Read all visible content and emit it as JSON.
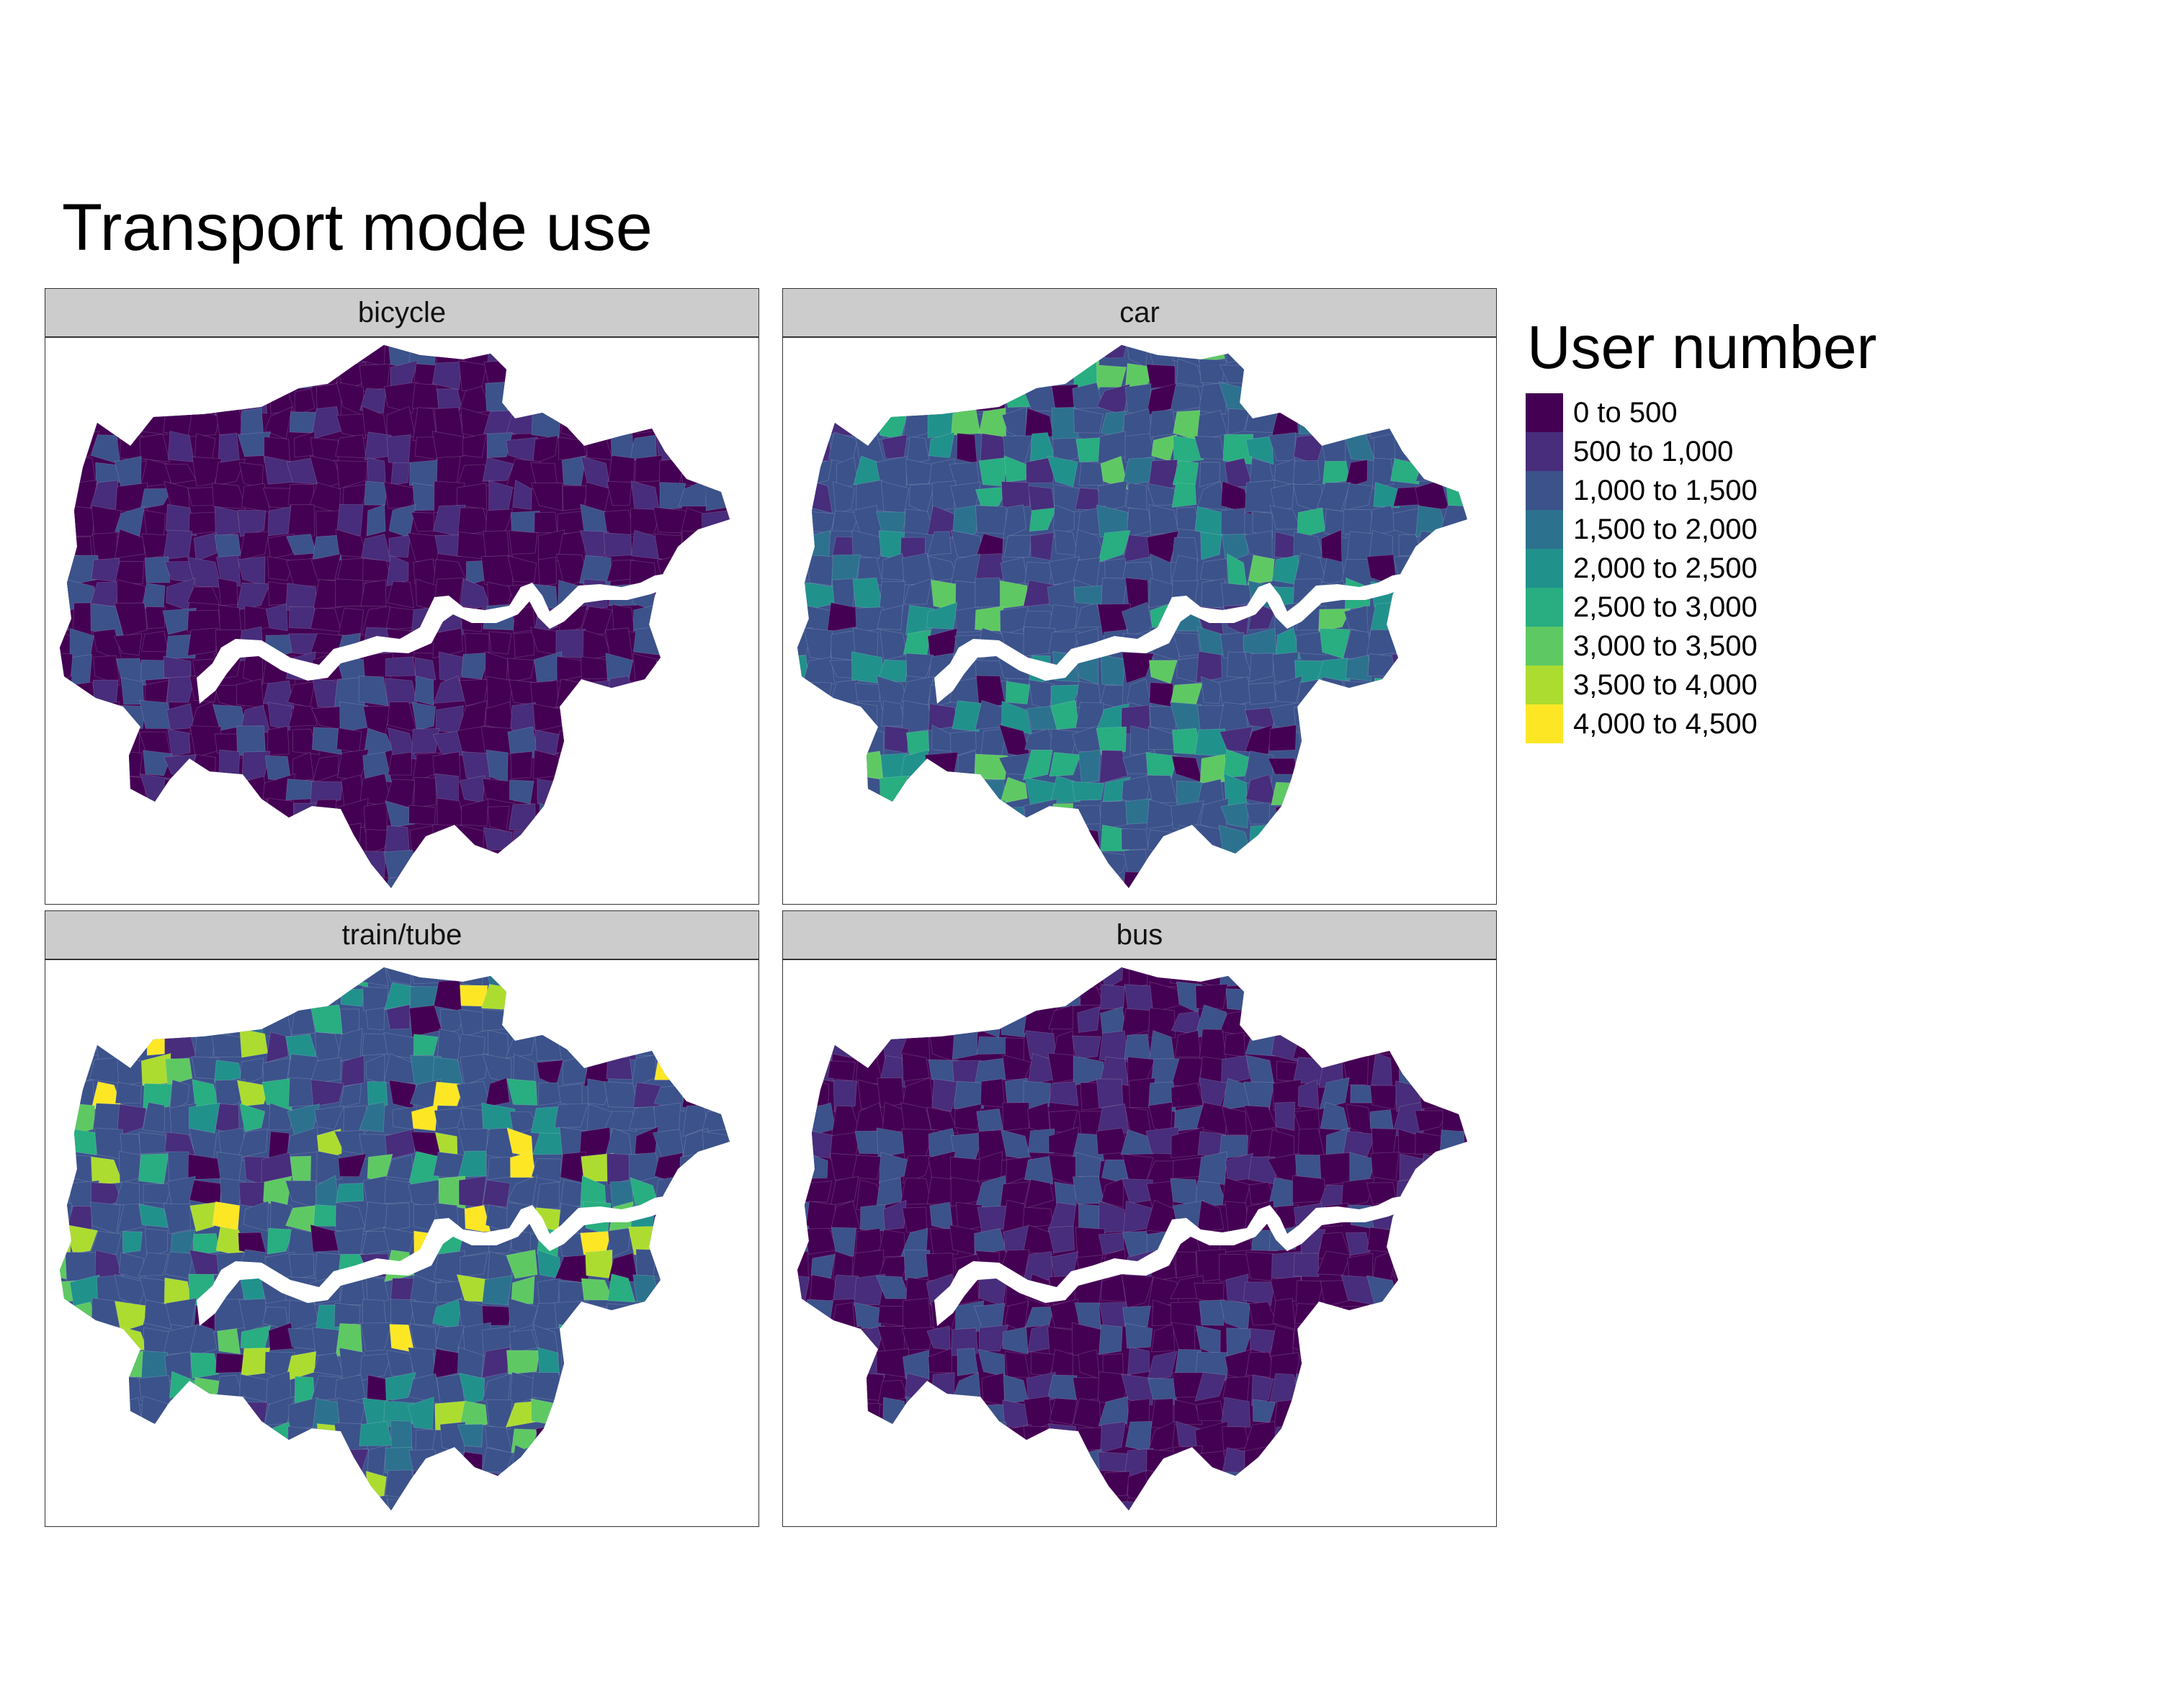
{
  "title": "Transport mode use",
  "legend": {
    "title": "User number",
    "classes": [
      {
        "label": "0 to 500",
        "color": "#440154"
      },
      {
        "label": "500 to 1,000",
        "color": "#472d7b"
      },
      {
        "label": "1,000 to 1,500",
        "color": "#3b528b"
      },
      {
        "label": "1,500 to 2,000",
        "color": "#2c728e"
      },
      {
        "label": "2,000 to 2,500",
        "color": "#21918c"
      },
      {
        "label": "2,500 to 3,000",
        "color": "#28ae80"
      },
      {
        "label": "3,000 to 3,500",
        "color": "#5ec962"
      },
      {
        "label": "3,500 to 4,000",
        "color": "#addc30"
      },
      {
        "label": "4,000 to 4,500",
        "color": "#fde725"
      }
    ]
  },
  "panels": [
    {
      "name": "bicycle",
      "base_class": 0,
      "accent_classes": [
        1,
        2
      ]
    },
    {
      "name": "car",
      "base_class": 2,
      "accent_classes": [
        1,
        3,
        4,
        5,
        6,
        0
      ]
    },
    {
      "name": "train/tube",
      "base_class": 2,
      "accent_classes": [
        1,
        3,
        4,
        5,
        6,
        7,
        8,
        0
      ]
    },
    {
      "name": "bus",
      "base_class": 0,
      "accent_classes": [
        1,
        2
      ]
    }
  ]
}
